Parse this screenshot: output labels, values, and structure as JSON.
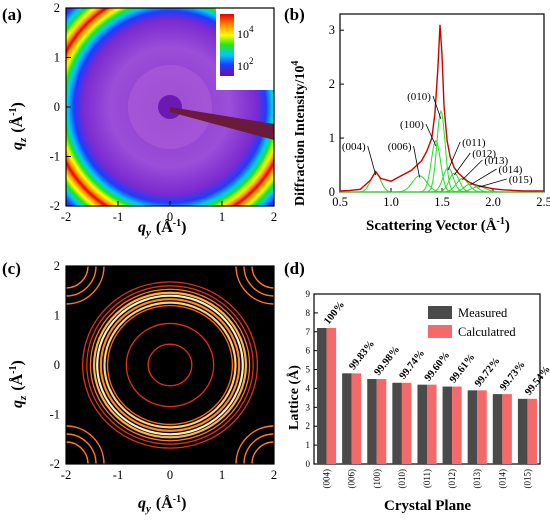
{
  "figure": {
    "panels": [
      {
        "id": "a",
        "label": "(a)",
        "x_label_var": "q",
        "x_label_sub": "y",
        "x_label_unit": "(Å",
        "x_label_exp": "-1",
        "x_label_close": ")",
        "y_label_var": "q",
        "y_label_sub": "z",
        "y_label_unit": "(Å",
        "y_label_exp": "-1",
        "y_label_close": ")",
        "colorbar_ticks": [
          "10",
          "10"
        ],
        "colorbar_exps": [
          "4",
          "2"
        ]
      },
      {
        "id": "b",
        "label": "(b)",
        "ylabel": "Diffraction Intensity/10",
        "ylabel_exp": "4",
        "xlabel": "Scattering Vector (Å",
        "xlabel_exp": "-1",
        "xlabel_close": ")"
      },
      {
        "id": "c",
        "label": "(c)",
        "x_label_var": "q",
        "x_label_sub": "y",
        "x_label_unit": "(Å",
        "x_label_exp": "-1",
        "x_label_close": ")",
        "y_label_var": "q",
        "y_label_sub": "z",
        "y_label_unit": "(Å",
        "y_label_exp": "-1",
        "y_label_close": ")"
      },
      {
        "id": "d",
        "label": "(d)",
        "ylabel": "Lattice (Å)",
        "xlabel": "Crystal Plane"
      }
    ]
  },
  "chart_data": [
    {
      "panel": "a",
      "type": "heatmap",
      "xlim": [
        -2,
        2
      ],
      "ylim": [
        -2,
        2
      ],
      "xticks": [
        "-2",
        "-1",
        "0",
        "1",
        "2"
      ],
      "yticks": [
        "2",
        "1",
        "0",
        "-1",
        "-2"
      ],
      "ring_radius": 1.4,
      "colorscale": [
        "#6a0dad",
        "#1e3cff",
        "#00c8ff",
        "#1ee61e",
        "#ffff00",
        "#ff8c00",
        "#e60000"
      ],
      "colorbar_range": [
        "10^2",
        "10^4"
      ]
    },
    {
      "panel": "b",
      "type": "line",
      "xlim": [
        0.5,
        2.5
      ],
      "ylim": [
        0,
        3.3
      ],
      "xticks": [
        "0.5",
        "1.0",
        "1.5",
        "2.0",
        "2.5"
      ],
      "yticks": [
        "0",
        "1",
        "2",
        "3"
      ],
      "series": [
        {
          "color": "#cc0000",
          "x": [
            0.5,
            0.6,
            0.7,
            0.8,
            0.85,
            0.9,
            1.0,
            1.1,
            1.2,
            1.3,
            1.35,
            1.4,
            1.43,
            1.46,
            1.48,
            1.5,
            1.52,
            1.55,
            1.58,
            1.62,
            1.66,
            1.7,
            1.75,
            1.8,
            1.85,
            1.9,
            2.0,
            2.1,
            2.2,
            2.3,
            2.4,
            2.5
          ],
          "y": [
            0.02,
            0.03,
            0.05,
            0.22,
            0.38,
            0.25,
            0.2,
            0.3,
            0.4,
            0.58,
            0.75,
            1.0,
            1.45,
            2.3,
            3.1,
            2.55,
            1.6,
            0.95,
            0.65,
            0.45,
            0.35,
            0.28,
            0.2,
            0.15,
            0.12,
            0.1,
            0.06,
            0.04,
            0.03,
            0.02,
            0.02,
            0.02
          ]
        }
      ],
      "components": [
        {
          "label": "(004)",
          "center": 0.85,
          "height": 0.35,
          "width": 0.05
        },
        {
          "label": "(006)",
          "center": 1.28,
          "height": 0.3,
          "width": 0.07
        },
        {
          "label": "(100)",
          "center": 1.44,
          "height": 0.95,
          "width": 0.045
        },
        {
          "label": "(010)",
          "center": 1.49,
          "height": 1.5,
          "width": 0.04
        },
        {
          "label": "(011)",
          "center": 1.56,
          "height": 0.45,
          "width": 0.05
        },
        {
          "label": "(012)",
          "center": 1.62,
          "height": 0.35,
          "width": 0.05
        },
        {
          "label": "(013)",
          "center": 1.7,
          "height": 0.25,
          "width": 0.06
        },
        {
          "label": "(014)",
          "center": 1.78,
          "height": 0.15,
          "width": 0.06
        },
        {
          "label": "(015)",
          "center": 1.86,
          "height": 0.1,
          "width": 0.07
        }
      ],
      "component_color": "#22dd22"
    },
    {
      "panel": "c",
      "type": "heatmap",
      "xlim": [
        -2,
        2
      ],
      "ylim": [
        -2,
        2
      ],
      "xticks": [
        "-2",
        "-1",
        "0",
        "1",
        "2"
      ],
      "yticks": [
        "2",
        "1",
        "0",
        "-1",
        "-2"
      ],
      "rings": [
        {
          "r": 0.42,
          "color": "#e0301a"
        },
        {
          "r": 0.84,
          "color": "#e0301a"
        },
        {
          "r": 1.2,
          "color": "#ff6a1a"
        },
        {
          "r": 1.26,
          "color": "#ffd080"
        },
        {
          "r": 1.33,
          "color": "#ff8a2a"
        },
        {
          "r": 1.4,
          "color": "#fff0c0"
        },
        {
          "r": 1.46,
          "color": "#ffb050"
        },
        {
          "r": 1.53,
          "color": "#ff7a20"
        },
        {
          "r": 1.6,
          "color": "#e0301a"
        },
        {
          "r": 1.68,
          "color": "#e0301a"
        }
      ]
    },
    {
      "panel": "d",
      "type": "bar",
      "categories": [
        "(004)",
        "(006)",
        "(100)",
        "(010)",
        "(011)",
        "(012)",
        "(013)",
        "(014)",
        "(015)"
      ],
      "ylim": [
        0,
        9
      ],
      "yticks": [
        "0",
        "1",
        "2",
        "3",
        "4",
        "5",
        "6",
        "7",
        "8",
        "9"
      ],
      "series": [
        {
          "name": "Measured",
          "color": "#4a4a4a",
          "values": [
            7.2,
            4.8,
            4.5,
            4.3,
            4.2,
            4.1,
            3.9,
            3.7,
            3.45
          ]
        },
        {
          "name": "Calculatred",
          "color": "#f46a6a",
          "values": [
            7.2,
            4.8,
            4.5,
            4.3,
            4.2,
            4.1,
            3.9,
            3.7,
            3.45
          ]
        }
      ],
      "bar_labels": [
        "100%",
        "99.83%",
        "99.98%",
        "99.74%",
        "99.60%",
        "99.61%",
        "99.72%",
        "99.73%",
        "99.54%"
      ],
      "legend": "top-right"
    }
  ]
}
